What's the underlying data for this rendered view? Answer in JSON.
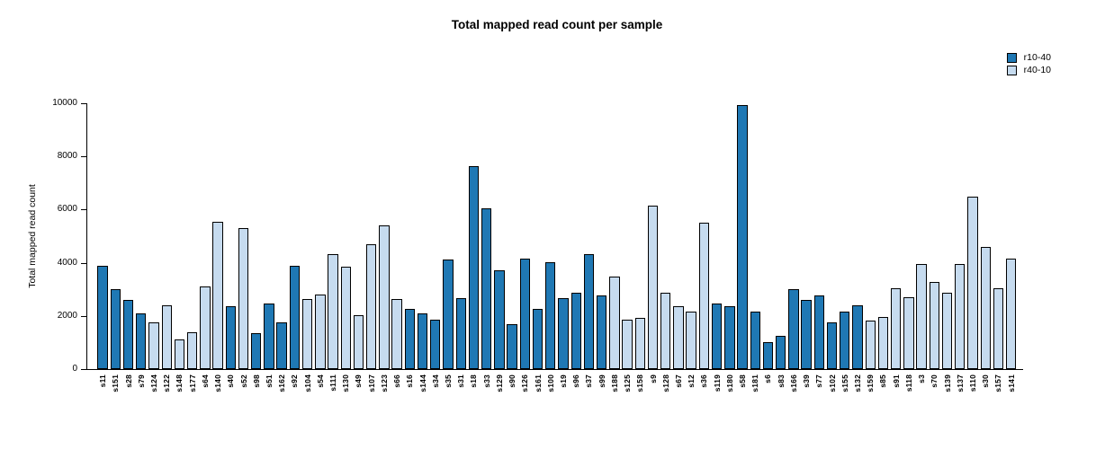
{
  "chart_data": {
    "type": "bar",
    "title": "Total mapped read count per sample",
    "xlabel": "",
    "ylabel": "Total mapped read count",
    "ylim": [
      0,
      10000
    ],
    "yticks": [
      0,
      2000,
      4000,
      6000,
      8000,
      10000
    ],
    "grid": false,
    "legend_position": "top-right",
    "legend": [
      {
        "label": "r10-40",
        "color": "#1F78B4"
      },
      {
        "label": "r40-10",
        "color": "#C6DBEF"
      }
    ],
    "samples": [
      {
        "name": "s11",
        "value": 3900,
        "group": "r10-40"
      },
      {
        "name": "s151",
        "value": 3000,
        "group": "r10-40"
      },
      {
        "name": "s28",
        "value": 2600,
        "group": "r10-40"
      },
      {
        "name": "s79",
        "value": 2100,
        "group": "r10-40"
      },
      {
        "name": "s124",
        "value": 1750,
        "group": "r40-10"
      },
      {
        "name": "s122",
        "value": 2400,
        "group": "r40-10"
      },
      {
        "name": "s148",
        "value": 1100,
        "group": "r40-10"
      },
      {
        "name": "s177",
        "value": 1400,
        "group": "r40-10"
      },
      {
        "name": "s64",
        "value": 3100,
        "group": "r40-10"
      },
      {
        "name": "s140",
        "value": 5550,
        "group": "r40-10"
      },
      {
        "name": "s40",
        "value": 2350,
        "group": "r10-40"
      },
      {
        "name": "s52",
        "value": 5320,
        "group": "r40-10"
      },
      {
        "name": "s98",
        "value": 1350,
        "group": "r10-40"
      },
      {
        "name": "s51",
        "value": 2450,
        "group": "r10-40"
      },
      {
        "name": "s162",
        "value": 1750,
        "group": "r10-40"
      },
      {
        "name": "s92",
        "value": 3870,
        "group": "r10-40"
      },
      {
        "name": "s104",
        "value": 2650,
        "group": "r40-10"
      },
      {
        "name": "s54",
        "value": 2790,
        "group": "r40-10"
      },
      {
        "name": "s111",
        "value": 4310,
        "group": "r40-10"
      },
      {
        "name": "s130",
        "value": 3840,
        "group": "r40-10"
      },
      {
        "name": "s49",
        "value": 2020,
        "group": "r40-10"
      },
      {
        "name": "s107",
        "value": 4680,
        "group": "r40-10"
      },
      {
        "name": "s123",
        "value": 5390,
        "group": "r40-10"
      },
      {
        "name": "s66",
        "value": 2630,
        "group": "r40-10"
      },
      {
        "name": "s16",
        "value": 2260,
        "group": "r10-40"
      },
      {
        "name": "s144",
        "value": 2090,
        "group": "r10-40"
      },
      {
        "name": "s34",
        "value": 1850,
        "group": "r10-40"
      },
      {
        "name": "s35",
        "value": 4110,
        "group": "r10-40"
      },
      {
        "name": "s31",
        "value": 2660,
        "group": "r10-40"
      },
      {
        "name": "s18",
        "value": 7640,
        "group": "r10-40"
      },
      {
        "name": "s33",
        "value": 6060,
        "group": "r10-40"
      },
      {
        "name": "s129",
        "value": 3700,
        "group": "r10-40"
      },
      {
        "name": "s90",
        "value": 1680,
        "group": "r10-40"
      },
      {
        "name": "s126",
        "value": 4140,
        "group": "r10-40"
      },
      {
        "name": "s161",
        "value": 2260,
        "group": "r10-40"
      },
      {
        "name": "s100",
        "value": 4010,
        "group": "r10-40"
      },
      {
        "name": "s19",
        "value": 2660,
        "group": "r10-40"
      },
      {
        "name": "s96",
        "value": 2860,
        "group": "r10-40"
      },
      {
        "name": "s37",
        "value": 4310,
        "group": "r10-40"
      },
      {
        "name": "s99",
        "value": 2760,
        "group": "r10-40"
      },
      {
        "name": "s188",
        "value": 3470,
        "group": "r40-10"
      },
      {
        "name": "s125",
        "value": 1850,
        "group": "r40-10"
      },
      {
        "name": "s158",
        "value": 1920,
        "group": "r40-10"
      },
      {
        "name": "s9",
        "value": 6160,
        "group": "r40-10"
      },
      {
        "name": "s128",
        "value": 2860,
        "group": "r40-10"
      },
      {
        "name": "s67",
        "value": 2360,
        "group": "r40-10"
      },
      {
        "name": "s12",
        "value": 2150,
        "group": "r40-10"
      },
      {
        "name": "s36",
        "value": 5490,
        "group": "r40-10"
      },
      {
        "name": "s119",
        "value": 2460,
        "group": "r10-40"
      },
      {
        "name": "s180",
        "value": 2360,
        "group": "r10-40"
      },
      {
        "name": "s58",
        "value": 9930,
        "group": "r10-40"
      },
      {
        "name": "s181",
        "value": 2150,
        "group": "r10-40"
      },
      {
        "name": "s6",
        "value": 1010,
        "group": "r10-40"
      },
      {
        "name": "s83",
        "value": 1250,
        "group": "r10-40"
      },
      {
        "name": "s166",
        "value": 3000,
        "group": "r10-40"
      },
      {
        "name": "s39",
        "value": 2590,
        "group": "r10-40"
      },
      {
        "name": "s77",
        "value": 2760,
        "group": "r10-40"
      },
      {
        "name": "s102",
        "value": 1750,
        "group": "r10-40"
      },
      {
        "name": "s155",
        "value": 2150,
        "group": "r10-40"
      },
      {
        "name": "s132",
        "value": 2390,
        "group": "r10-40"
      },
      {
        "name": "s159",
        "value": 1820,
        "group": "r40-10"
      },
      {
        "name": "s85",
        "value": 1950,
        "group": "r40-10"
      },
      {
        "name": "s91",
        "value": 3030,
        "group": "r40-10"
      },
      {
        "name": "s118",
        "value": 2690,
        "group": "r40-10"
      },
      {
        "name": "s3",
        "value": 3940,
        "group": "r40-10"
      },
      {
        "name": "s70",
        "value": 3270,
        "group": "r40-10"
      },
      {
        "name": "s139",
        "value": 2860,
        "group": "r40-10"
      },
      {
        "name": "s137",
        "value": 3940,
        "group": "r40-10"
      },
      {
        "name": "s110",
        "value": 6500,
        "group": "r40-10"
      },
      {
        "name": "s30",
        "value": 4610,
        "group": "r40-10"
      },
      {
        "name": "s157",
        "value": 3030,
        "group": "r40-10"
      },
      {
        "name": "s141",
        "value": 4170,
        "group": "r40-10"
      }
    ]
  }
}
